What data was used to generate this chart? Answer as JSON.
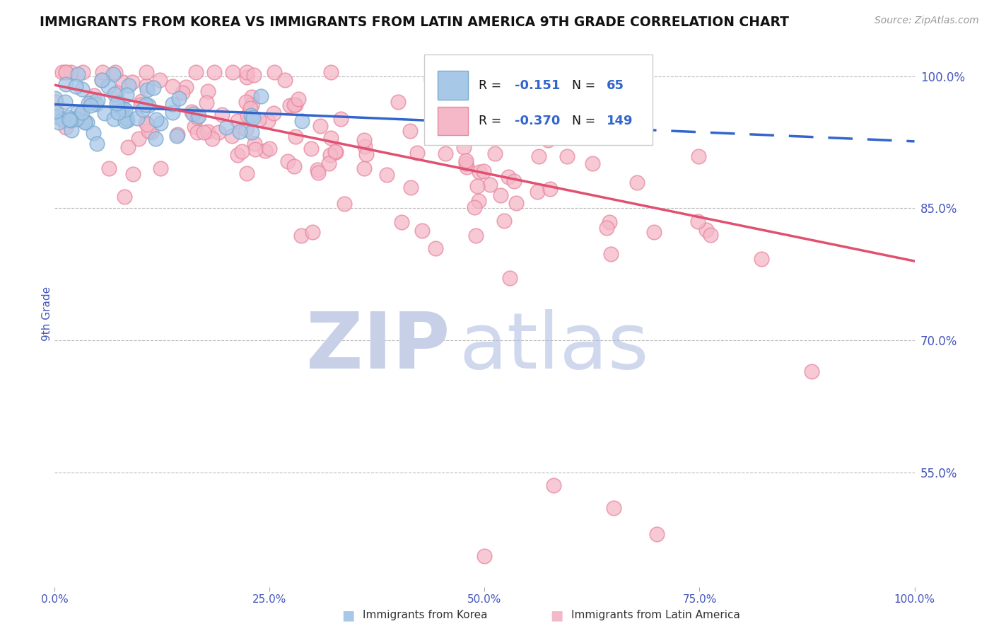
{
  "title": "IMMIGRANTS FROM KOREA VS IMMIGRANTS FROM LATIN AMERICA 9TH GRADE CORRELATION CHART",
  "source": "Source: ZipAtlas.com",
  "ylabel": "9th Grade",
  "yaxis_labels": [
    "100.0%",
    "85.0%",
    "70.0%",
    "55.0%"
  ],
  "yaxis_values": [
    1.0,
    0.85,
    0.7,
    0.55
  ],
  "xmin": 0.0,
  "xmax": 1.0,
  "ymin": 0.42,
  "ymax": 1.04,
  "korea_R": -0.151,
  "korea_N": 65,
  "latin_R": -0.37,
  "latin_N": 149,
  "korea_color": "#A8C8E8",
  "korea_edge_color": "#7AAAD0",
  "latin_color": "#F5B8C8",
  "latin_edge_color": "#E888A0",
  "korea_line_color": "#3366CC",
  "latin_line_color": "#E05070",
  "background_color": "#FFFFFF",
  "grid_color": "#BBBBBB",
  "title_color": "#111111",
  "axis_label_color": "#4455BB",
  "watermark_zip_color": "#C8D0E8",
  "watermark_atlas_color": "#AAB8E0",
  "legend_text_dark": "#111111",
  "legend_val_color": "#3366CC",
  "xtick_labels": [
    "0.0%",
    "25.0%",
    "50.0%",
    "75.0%",
    "100.0%"
  ],
  "xtick_vals": [
    0.0,
    0.25,
    0.5,
    0.75,
    1.0
  ],
  "korea_trend_start": 0.0,
  "korea_trend_solid_end": 0.68,
  "korea_trend_end": 1.0,
  "latin_trend_start": 0.0,
  "latin_trend_end": 1.0,
  "korea_intercept": 0.968,
  "korea_slope": -0.042,
  "latin_intercept": 0.99,
  "latin_slope": -0.2
}
